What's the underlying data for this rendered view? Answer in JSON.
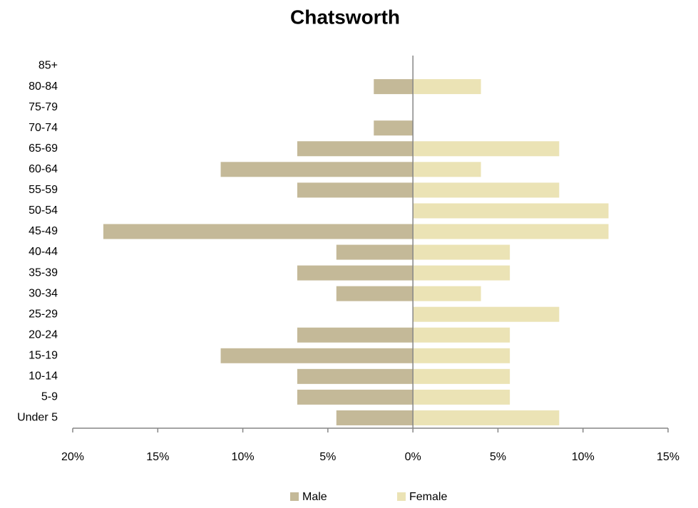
{
  "chart_data": {
    "type": "pyramid",
    "title": "Chatsworth",
    "categories": [
      "Under 5",
      "5-9",
      "10-14",
      "15-19",
      "20-24",
      "25-29",
      "30-34",
      "35-39",
      "40-44",
      "45-49",
      "50-54",
      "55-59",
      "60-64",
      "65-69",
      "70-74",
      "75-79",
      "80-84",
      "85+"
    ],
    "series": [
      {
        "name": "Male",
        "color": "#c4b998",
        "values": [
          -4.5,
          -6.8,
          -6.8,
          -11.3,
          -6.8,
          0,
          -4.5,
          -6.8,
          -4.5,
          -18.2,
          0,
          -6.8,
          -11.3,
          -6.8,
          -2.3,
          0,
          -2.3,
          0
        ]
      },
      {
        "name": "Female",
        "color": "#ebe3b5",
        "values": [
          8.6,
          5.7,
          5.7,
          5.7,
          5.7,
          8.6,
          4.0,
          5.7,
          5.7,
          11.5,
          11.5,
          8.6,
          4.0,
          8.6,
          0,
          0,
          4.0,
          0
        ]
      }
    ],
    "xlim": [
      -20,
      15
    ],
    "xticks": [
      {
        "value": -20,
        "label": "20%"
      },
      {
        "value": -15,
        "label": "15%"
      },
      {
        "value": -10,
        "label": "10%"
      },
      {
        "value": -5,
        "label": "5%"
      },
      {
        "value": 0,
        "label": "0%"
      },
      {
        "value": 5,
        "label": "5%"
      },
      {
        "value": 10,
        "label": "10%"
      },
      {
        "value": 15,
        "label": "15%"
      }
    ],
    "legend": "bottom"
  }
}
